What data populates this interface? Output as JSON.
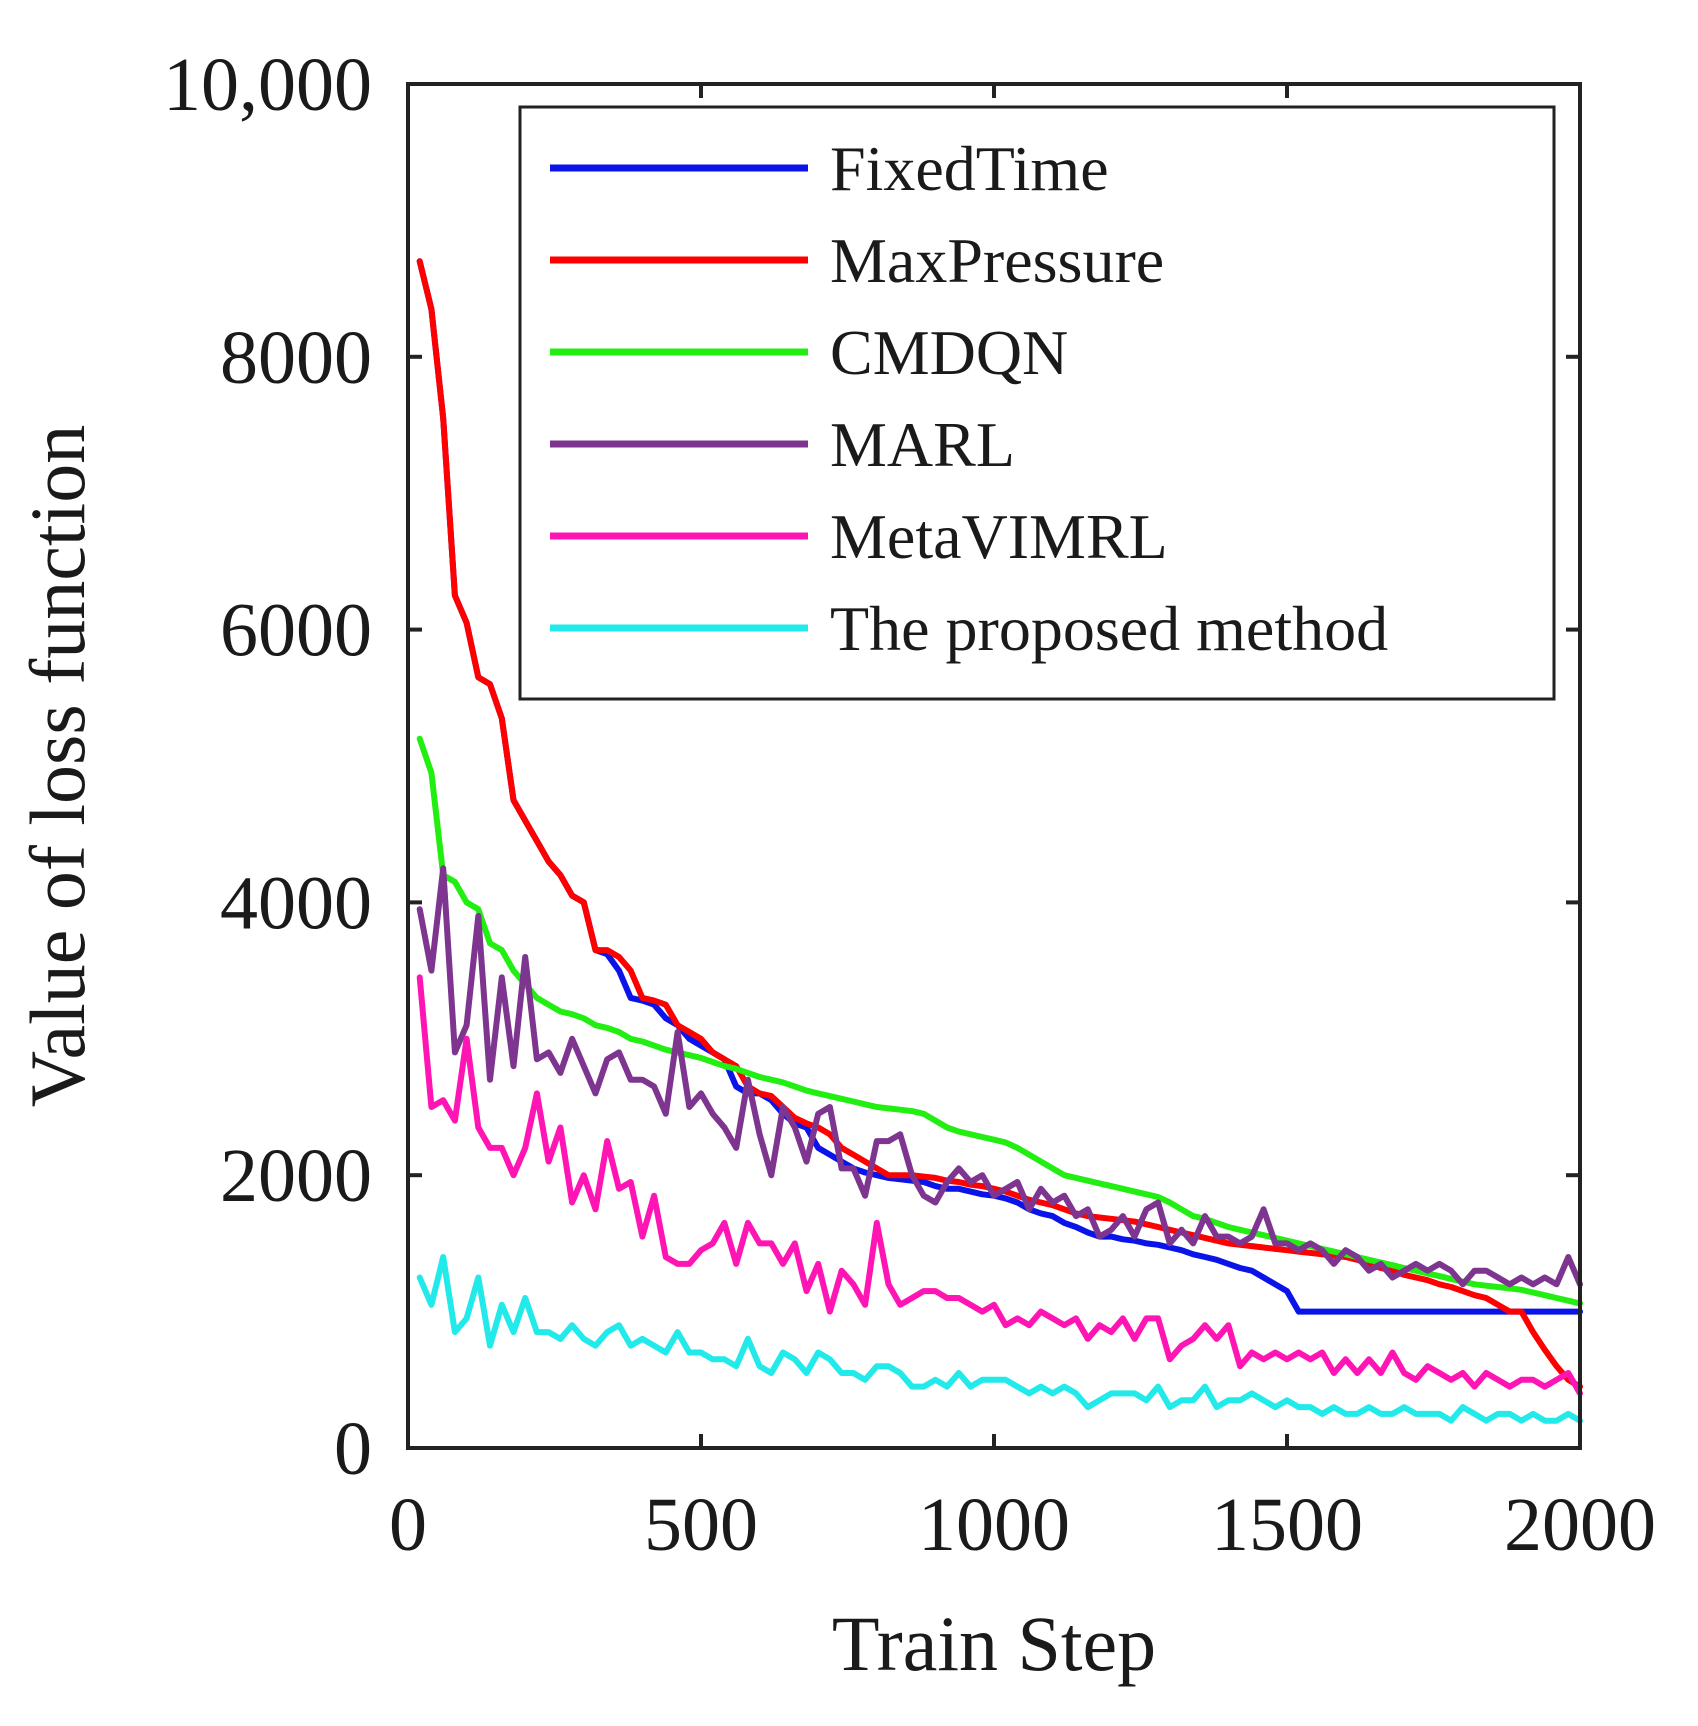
{
  "chart_data": {
    "type": "line",
    "title": "",
    "xlabel": "Train Step",
    "ylabel": "Value of loss function",
    "xlim": [
      0,
      2000
    ],
    "ylim": [
      0,
      10000
    ],
    "xticks": [
      0,
      500,
      1000,
      1500,
      2000
    ],
    "xtick_labels": [
      "0",
      "500",
      "1000",
      "1500",
      "2000"
    ],
    "yticks": [
      0,
      2000,
      4000,
      6000,
      8000,
      10000
    ],
    "ytick_labels": [
      "0",
      "2000",
      "4000",
      "6000",
      "8000",
      "10,000"
    ],
    "legend_position": "top-right",
    "x": [
      20,
      40,
      60,
      80,
      100,
      120,
      140,
      160,
      180,
      200,
      220,
      240,
      260,
      280,
      300,
      320,
      340,
      360,
      380,
      400,
      420,
      440,
      460,
      480,
      500,
      520,
      540,
      560,
      580,
      600,
      620,
      640,
      660,
      680,
      700,
      720,
      740,
      760,
      780,
      800,
      820,
      840,
      860,
      880,
      900,
      920,
      940,
      960,
      980,
      1000,
      1020,
      1040,
      1060,
      1080,
      1100,
      1120,
      1140,
      1160,
      1180,
      1200,
      1220,
      1240,
      1260,
      1280,
      1300,
      1320,
      1340,
      1360,
      1380,
      1400,
      1420,
      1440,
      1460,
      1480,
      1500,
      1520,
      1540,
      1560,
      1580,
      1600,
      1620,
      1640,
      1660,
      1680,
      1700,
      1720,
      1740,
      1760,
      1780,
      1800,
      1820,
      1840,
      1860,
      1880,
      1900,
      1920,
      1940,
      1960,
      1980,
      2000
    ],
    "series": [
      {
        "name": "FixedTime",
        "color": "#0a14e8",
        "values": [
          8700,
          8350,
          7550,
          6250,
          6050,
          5650,
          5600,
          5350,
          4750,
          4600,
          4450,
          4300,
          4200,
          4050,
          4000,
          3650,
          3620,
          3500,
          3300,
          3280,
          3250,
          3150,
          3100,
          3000,
          2950,
          2900,
          2850,
          2650,
          2600,
          2600,
          2550,
          2450,
          2380,
          2350,
          2200,
          2150,
          2100,
          2050,
          2020,
          2000,
          1980,
          1970,
          1960,
          1950,
          1920,
          1900,
          1900,
          1880,
          1860,
          1850,
          1830,
          1800,
          1750,
          1720,
          1700,
          1650,
          1620,
          1580,
          1550,
          1550,
          1530,
          1520,
          1500,
          1490,
          1470,
          1450,
          1420,
          1400,
          1380,
          1350,
          1320,
          1300,
          1250,
          1200,
          1150,
          1000,
          1000,
          1000,
          1000,
          1000,
          1000,
          1000,
          1000,
          1000,
          1000,
          1000,
          1000,
          1000,
          1000,
          1000,
          1000,
          1000,
          1000,
          1000,
          1000,
          1000,
          1000,
          1000,
          1000,
          1000
        ]
      },
      {
        "name": "MaxPressure",
        "color": "#ff0000",
        "values": [
          8700,
          8350,
          7550,
          6250,
          6050,
          5650,
          5600,
          5350,
          4750,
          4600,
          4450,
          4300,
          4200,
          4050,
          4000,
          3650,
          3650,
          3600,
          3500,
          3300,
          3280,
          3250,
          3100,
          3050,
          3000,
          2900,
          2850,
          2800,
          2650,
          2600,
          2580,
          2500,
          2420,
          2380,
          2350,
          2300,
          2200,
          2150,
          2100,
          2050,
          2000,
          2000,
          2000,
          1990,
          1980,
          1960,
          1950,
          1930,
          1920,
          1900,
          1880,
          1850,
          1820,
          1800,
          1780,
          1750,
          1720,
          1700,
          1690,
          1680,
          1670,
          1660,
          1640,
          1620,
          1600,
          1580,
          1560,
          1540,
          1520,
          1500,
          1490,
          1480,
          1470,
          1460,
          1450,
          1440,
          1430,
          1420,
          1410,
          1400,
          1380,
          1350,
          1320,
          1300,
          1270,
          1250,
          1230,
          1200,
          1180,
          1150,
          1120,
          1100,
          1050,
          1000,
          1000,
          850,
          720,
          600,
          500,
          450
        ]
      },
      {
        "name": "CMDQN",
        "color": "#22ee11",
        "values": [
          5200,
          4950,
          4200,
          4150,
          4000,
          3950,
          3700,
          3650,
          3500,
          3400,
          3300,
          3250,
          3200,
          3180,
          3150,
          3100,
          3080,
          3050,
          3000,
          2980,
          2950,
          2920,
          2900,
          2880,
          2860,
          2830,
          2800,
          2780,
          2750,
          2720,
          2700,
          2680,
          2650,
          2620,
          2600,
          2580,
          2560,
          2540,
          2520,
          2500,
          2490,
          2480,
          2470,
          2450,
          2400,
          2350,
          2320,
          2300,
          2280,
          2260,
          2240,
          2200,
          2150,
          2100,
          2050,
          2000,
          1980,
          1960,
          1940,
          1920,
          1900,
          1880,
          1860,
          1840,
          1800,
          1750,
          1700,
          1680,
          1650,
          1620,
          1600,
          1580,
          1560,
          1540,
          1520,
          1500,
          1480,
          1460,
          1440,
          1420,
          1400,
          1380,
          1360,
          1340,
          1320,
          1300,
          1280,
          1260,
          1240,
          1220,
          1200,
          1190,
          1180,
          1170,
          1160,
          1140,
          1120,
          1100,
          1080,
          1060
        ]
      },
      {
        "name": "MARL",
        "color": "#7d3590",
        "values": [
          3950,
          3500,
          4250,
          2900,
          3100,
          3900,
          2700,
          3450,
          2800,
          3600,
          2850,
          2900,
          2750,
          3000,
          2800,
          2600,
          2850,
          2900,
          2700,
          2700,
          2650,
          2450,
          3050,
          2500,
          2600,
          2450,
          2350,
          2200,
          2700,
          2300,
          2000,
          2500,
          2350,
          2100,
          2450,
          2500,
          2050,
          2050,
          1850,
          2250,
          2250,
          2300,
          2000,
          1850,
          1800,
          1950,
          2050,
          1950,
          2000,
          1850,
          1900,
          1950,
          1750,
          1900,
          1800,
          1850,
          1700,
          1750,
          1550,
          1600,
          1700,
          1550,
          1750,
          1800,
          1500,
          1600,
          1500,
          1700,
          1550,
          1550,
          1500,
          1550,
          1750,
          1500,
          1500,
          1450,
          1500,
          1450,
          1350,
          1450,
          1400,
          1300,
          1350,
          1250,
          1300,
          1350,
          1300,
          1350,
          1300,
          1200,
          1300,
          1300,
          1250,
          1200,
          1250,
          1200,
          1250,
          1200,
          1400,
          1200
        ]
      },
      {
        "name": "MetaVIMRL",
        "color": "#ff14b4",
        "values": [
          3450,
          2500,
          2550,
          2400,
          3000,
          2350,
          2200,
          2200,
          2000,
          2200,
          2600,
          2100,
          2350,
          1800,
          2000,
          1750,
          2250,
          1900,
          1950,
          1550,
          1850,
          1400,
          1350,
          1350,
          1450,
          1500,
          1650,
          1350,
          1650,
          1500,
          1500,
          1350,
          1500,
          1150,
          1350,
          1000,
          1300,
          1200,
          1050,
          1650,
          1200,
          1050,
          1100,
          1150,
          1150,
          1100,
          1100,
          1050,
          1000,
          1050,
          900,
          950,
          900,
          1000,
          950,
          900,
          950,
          800,
          900,
          850,
          950,
          800,
          950,
          950,
          650,
          750,
          800,
          900,
          800,
          900,
          600,
          700,
          650,
          700,
          650,
          700,
          650,
          700,
          550,
          650,
          550,
          650,
          550,
          700,
          550,
          500,
          600,
          550,
          500,
          550,
          450,
          550,
          500,
          450,
          500,
          500,
          450,
          500,
          550,
          400
        ]
      },
      {
        "name": "The proposed method",
        "color": "#22eaea",
        "values": [
          1250,
          1050,
          1400,
          850,
          950,
          1250,
          750,
          1050,
          850,
          1100,
          850,
          850,
          800,
          900,
          800,
          750,
          850,
          900,
          750,
          800,
          750,
          700,
          850,
          700,
          700,
          650,
          650,
          600,
          800,
          600,
          550,
          700,
          650,
          550,
          700,
          650,
          550,
          550,
          500,
          600,
          600,
          550,
          450,
          450,
          500,
          450,
          550,
          450,
          500,
          500,
          500,
          450,
          400,
          450,
          400,
          450,
          400,
          300,
          350,
          400,
          400,
          400,
          350,
          450,
          300,
          350,
          350,
          450,
          300,
          350,
          350,
          400,
          350,
          300,
          350,
          300,
          300,
          250,
          300,
          250,
          250,
          300,
          250,
          250,
          300,
          250,
          250,
          250,
          200,
          300,
          250,
          200,
          250,
          250,
          200,
          250,
          200,
          200,
          250,
          200
        ]
      }
    ]
  }
}
